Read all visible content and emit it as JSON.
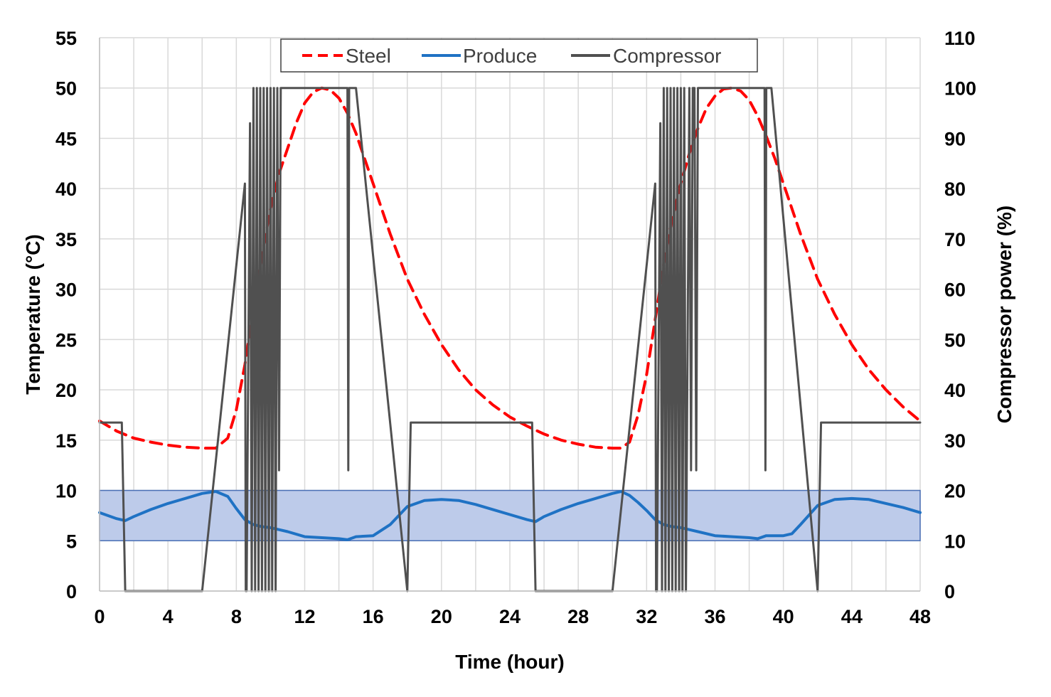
{
  "chart_data": {
    "type": "line",
    "title": "",
    "xlabel": "Time (hour)",
    "ylabel": "Temperature (°C)",
    "y2label": "Compressor power (%)",
    "xlim": [
      0,
      48
    ],
    "ylim": [
      0,
      55
    ],
    "y2lim": [
      0,
      110
    ],
    "x_ticks": [
      "0",
      "4",
      "8",
      "12",
      "16",
      "20",
      "24",
      "28",
      "32",
      "36",
      "40",
      "44",
      "48"
    ],
    "y_ticks": [
      "0",
      "5",
      "10",
      "15",
      "20",
      "25",
      "30",
      "35",
      "40",
      "45",
      "50",
      "55"
    ],
    "y2_ticks": [
      "0",
      "10",
      "20",
      "30",
      "40",
      "50",
      "60",
      "70",
      "80",
      "90",
      "100",
      "110"
    ],
    "grid": true,
    "legend": {
      "position": "top-center",
      "entries": [
        "Steel",
        "Produce",
        "Compressor"
      ]
    },
    "band": {
      "y_min": 5,
      "y_max": 10,
      "color": "#bdcbea",
      "edge_color": "#4a6fb5"
    },
    "series": [
      {
        "name": "Steel",
        "axis": "left",
        "color": "#ff0000",
        "style": "dashed",
        "x": [
          0,
          1,
          2,
          3,
          4,
          5,
          6,
          6.8,
          7.5,
          8,
          8.5,
          9,
          9.5,
          10,
          10.5,
          11,
          11.5,
          12,
          12.5,
          13,
          13.5,
          14,
          14.5,
          15,
          15.5,
          16,
          17,
          18,
          19,
          20,
          21,
          22,
          23,
          24,
          25,
          26,
          27,
          28,
          29,
          30,
          30.5,
          31,
          31.5,
          32,
          32.5,
          33,
          33.5,
          34,
          34.5,
          35,
          35.5,
          36,
          36.5,
          37,
          37.5,
          38,
          38.5,
          39,
          39.5,
          40,
          41,
          42,
          43,
          44,
          45,
          46,
          47,
          48
        ],
        "values": [
          16.9,
          15.9,
          15.2,
          14.8,
          14.5,
          14.3,
          14.2,
          14.2,
          15.2,
          18.0,
          22.5,
          28.0,
          33.5,
          38.0,
          41.5,
          44.0,
          46.5,
          48.5,
          49.6,
          50.0,
          49.8,
          49.0,
          47.5,
          45.5,
          43.0,
          40.5,
          35.5,
          31.0,
          27.5,
          24.5,
          22.0,
          20.0,
          18.5,
          17.3,
          16.4,
          15.6,
          15.0,
          14.6,
          14.3,
          14.2,
          14.2,
          14.8,
          17.5,
          21.5,
          27.0,
          32.5,
          37.0,
          40.5,
          43.5,
          46.0,
          48.0,
          49.2,
          49.9,
          50.0,
          49.7,
          48.8,
          47.2,
          45.2,
          43.0,
          40.5,
          35.5,
          31.0,
          27.5,
          24.5,
          22.0,
          20.0,
          18.3,
          16.9
        ]
      },
      {
        "name": "Produce",
        "axis": "left",
        "color": "#1f72c4",
        "style": "solid",
        "x": [
          0,
          1,
          1.5,
          2,
          3,
          4,
          5,
          6,
          6.8,
          7.5,
          8,
          8.5,
          9,
          9.5,
          10,
          10.5,
          11,
          12,
          13,
          14,
          14.5,
          15,
          16,
          17,
          18,
          19,
          20,
          21,
          22,
          23,
          24,
          25,
          25.5,
          26,
          27,
          28,
          29,
          30,
          30.5,
          31,
          31.5,
          32,
          32.5,
          33,
          33.5,
          34,
          34.5,
          35,
          36,
          37,
          38,
          38.5,
          39,
          40,
          40.5,
          41,
          42,
          43,
          44,
          45,
          46,
          47,
          48
        ],
        "values": [
          7.8,
          7.2,
          7.0,
          7.4,
          8.1,
          8.7,
          9.2,
          9.7,
          9.9,
          9.4,
          8.2,
          7.1,
          6.6,
          6.4,
          6.3,
          6.1,
          5.9,
          5.4,
          5.3,
          5.2,
          5.1,
          5.4,
          5.5,
          6.6,
          8.4,
          9.0,
          9.1,
          9.0,
          8.6,
          8.1,
          7.6,
          7.1,
          6.9,
          7.4,
          8.1,
          8.7,
          9.2,
          9.7,
          9.9,
          9.5,
          8.8,
          8.0,
          7.1,
          6.6,
          6.4,
          6.3,
          6.1,
          5.9,
          5.5,
          5.4,
          5.3,
          5.2,
          5.5,
          5.5,
          5.7,
          6.6,
          8.5,
          9.1,
          9.2,
          9.1,
          8.7,
          8.3,
          7.8
        ]
      },
      {
        "name": "Compressor",
        "axis": "right",
        "color": "#505050",
        "style": "solid",
        "x": [
          0,
          1.3,
          1.5,
          6.0,
          8.5,
          8.55,
          8.6,
          8.8,
          8.9,
          9.0,
          9.1,
          9.2,
          9.3,
          9.4,
          9.5,
          9.6,
          9.7,
          9.8,
          9.9,
          10.0,
          10.1,
          10.2,
          10.3,
          10.4,
          10.5,
          10.6,
          10.7,
          14.4,
          14.5,
          14.55,
          14.6,
          14.7,
          15.0,
          18.0,
          18.2,
          25.3,
          25.5,
          30.0,
          32.5,
          32.55,
          32.6,
          32.8,
          32.9,
          33.0,
          33.1,
          33.2,
          33.3,
          33.4,
          33.5,
          33.6,
          33.7,
          33.8,
          33.9,
          34.0,
          34.1,
          34.2,
          34.3,
          34.5,
          34.6,
          34.7,
          34.8,
          34.9,
          35.0,
          35.1,
          35.2,
          38.8,
          38.9,
          38.95,
          39.0,
          39.1,
          39.3,
          42.0,
          42.2,
          48.0
        ],
        "values": [
          33.5,
          33.5,
          0,
          0,
          81,
          0,
          0,
          93,
          0,
          100,
          0,
          100,
          0,
          100,
          0,
          100,
          0,
          100,
          0,
          100,
          0,
          100,
          0,
          100,
          24,
          100,
          100,
          100,
          100,
          24,
          100,
          100,
          100,
          0,
          33.5,
          33.5,
          0,
          0,
          81,
          0,
          0,
          93,
          0,
          100,
          0,
          100,
          0,
          100,
          0,
          100,
          0,
          100,
          0,
          100,
          0,
          100,
          0,
          100,
          24,
          100,
          100,
          24,
          100,
          100,
          100,
          100,
          100,
          24,
          100,
          100,
          100,
          0,
          33.5,
          33.5
        ]
      }
    ]
  }
}
